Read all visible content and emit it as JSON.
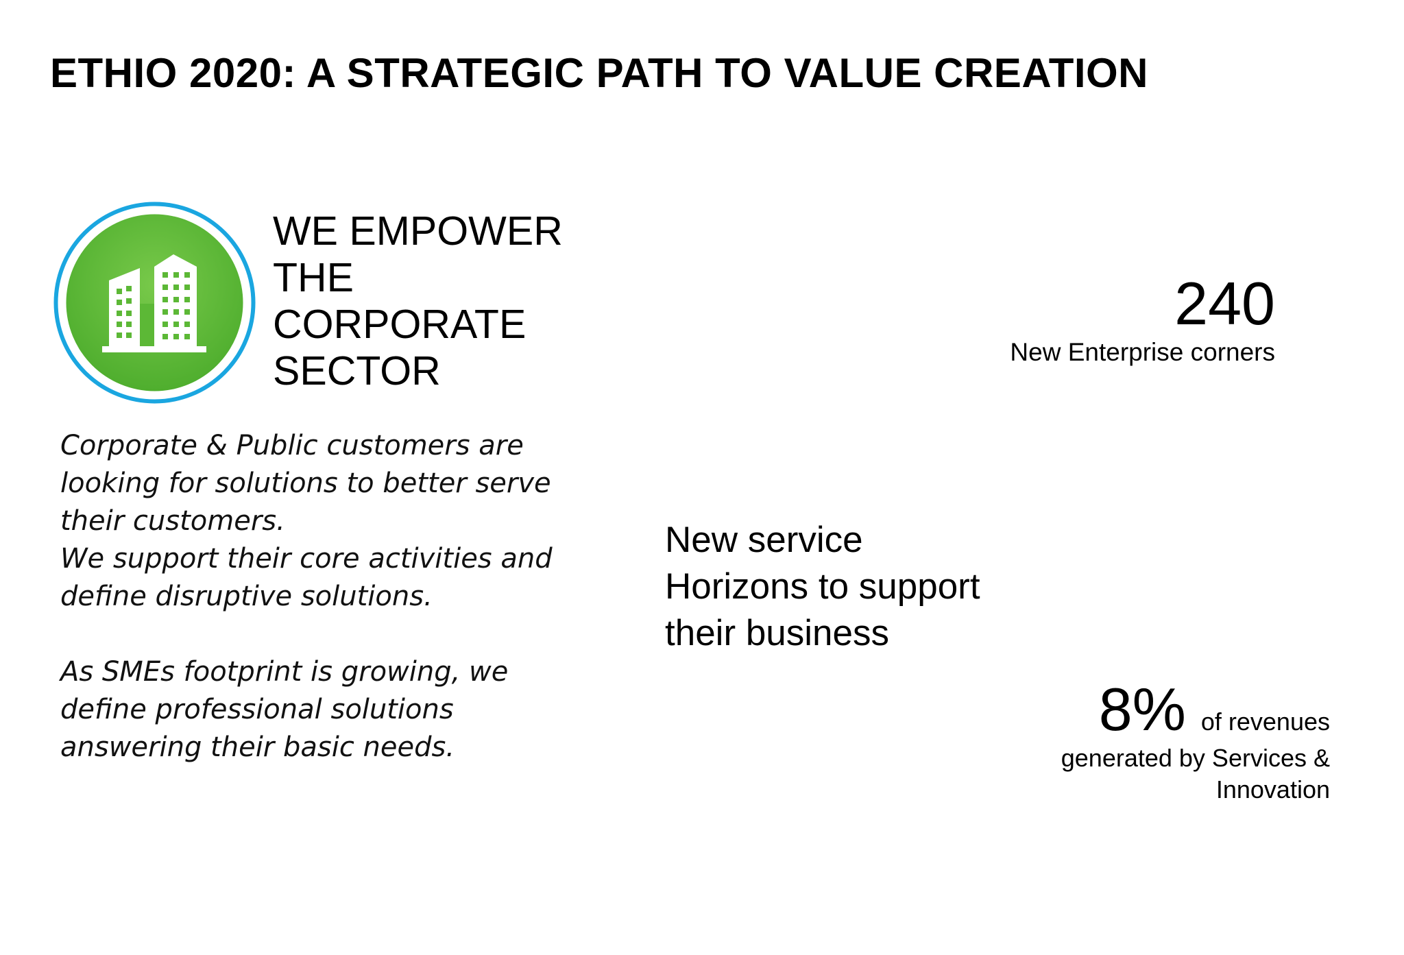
{
  "slide": {
    "title": "ETHIO 2020: A STRATEGIC PATH TO VALUE CREATION",
    "icon": "corporate-buildings-icon",
    "colors": {
      "circle_green": "#5cb836",
      "ring_blue": "#1aa6e0",
      "text": "#000000"
    }
  },
  "headline": "WE EMPOWER\nTHE\nCORPORATE\nSECTOR",
  "description": {
    "paragraph1": "Corporate & Public customers are\nlooking for solutions to better serve\ntheir customers.\nWe support their core activities and\ndefine disruptive solutions.",
    "paragraph2": "As SMEs footprint is growing, we\ndefine professional solutions\nanswering their basic needs."
  },
  "stat_enterprise": {
    "value": "240",
    "label": "New Enterprise corners"
  },
  "service_horizons": "New service\nHorizons to support\ntheir business",
  "stat_revenue": {
    "value": "8%",
    "suffix": "of revenues",
    "label": "generated by Services &\nInnovation"
  }
}
